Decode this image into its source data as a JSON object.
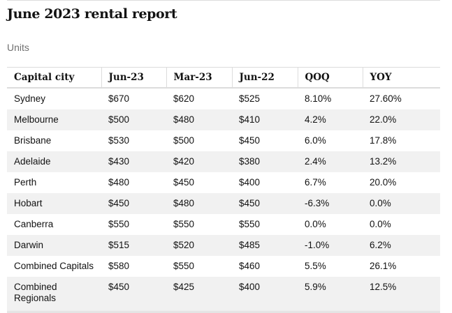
{
  "report": {
    "title": "June 2023 rental report",
    "subtitle": "Units"
  },
  "table": {
    "headers": [
      "Capital city",
      "Jun-23",
      "Mar-23",
      "Jun-22",
      "QOQ",
      "YOY"
    ],
    "rows": [
      [
        "Sydney",
        "$670",
        "$620",
        "$525",
        "8.10%",
        "27.60%"
      ],
      [
        "Melbourne",
        "$500",
        "$480",
        "$410",
        "4.2%",
        "22.0%"
      ],
      [
        "Brisbane",
        "$530",
        "$500",
        "$450",
        "6.0%",
        "17.8%"
      ],
      [
        "Adelaide",
        "$430",
        "$420",
        "$380",
        "2.4%",
        "13.2%"
      ],
      [
        "Perth",
        "$480",
        "$450",
        "$400",
        "6.7%",
        "20.0%"
      ],
      [
        "Hobart",
        "$450",
        "$480",
        "$450",
        "-6.3%",
        "0.0%"
      ],
      [
        "Canberra",
        "$550",
        "$550",
        "$550",
        "0.0%",
        "0.0%"
      ],
      [
        "Darwin",
        "$515",
        "$520",
        "$485",
        "-1.0%",
        "6.2%"
      ],
      [
        "Combined Capitals",
        "$580",
        "$550",
        "$460",
        "5.5%",
        "26.1%"
      ],
      [
        "Combined Regionals",
        "$450",
        "$425",
        "$400",
        "5.9%",
        "12.5%"
      ]
    ]
  }
}
